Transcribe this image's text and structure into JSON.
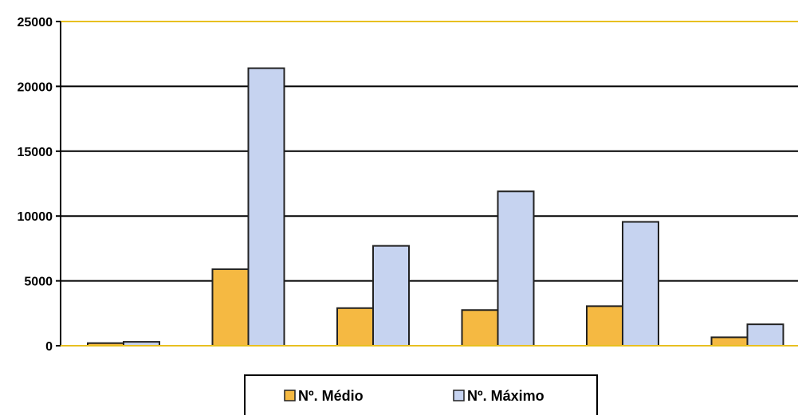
{
  "colors": {
    "medio": "#f5b942",
    "maximo": "#c6d3f0",
    "bar_stroke": "#222222",
    "grid": "#000000",
    "axis_line": "#e8c020"
  },
  "legend": {
    "items": [
      {
        "label": "Nº. Médio",
        "color_key": "medio"
      },
      {
        "label": "Nº. Máximo",
        "color_key": "maximo"
      }
    ]
  },
  "chart_data": {
    "type": "bar",
    "title": "",
    "xlabel": "",
    "ylabel": "",
    "ylim": [
      0,
      25000
    ],
    "yticks": [
      0,
      5000,
      10000,
      15000,
      20000,
      25000
    ],
    "grid": true,
    "legend_position": "bottom-center",
    "categories": [
      "",
      "",
      "",
      "",
      "",
      ""
    ],
    "series": [
      {
        "name": "Nº. Médio",
        "color_key": "medio",
        "values": [
          200,
          5900,
          2900,
          2750,
          3050,
          650
        ]
      },
      {
        "name": "Nº. Máximo",
        "color_key": "maximo",
        "values": [
          300,
          21400,
          7700,
          11900,
          9550,
          1650
        ]
      }
    ]
  }
}
